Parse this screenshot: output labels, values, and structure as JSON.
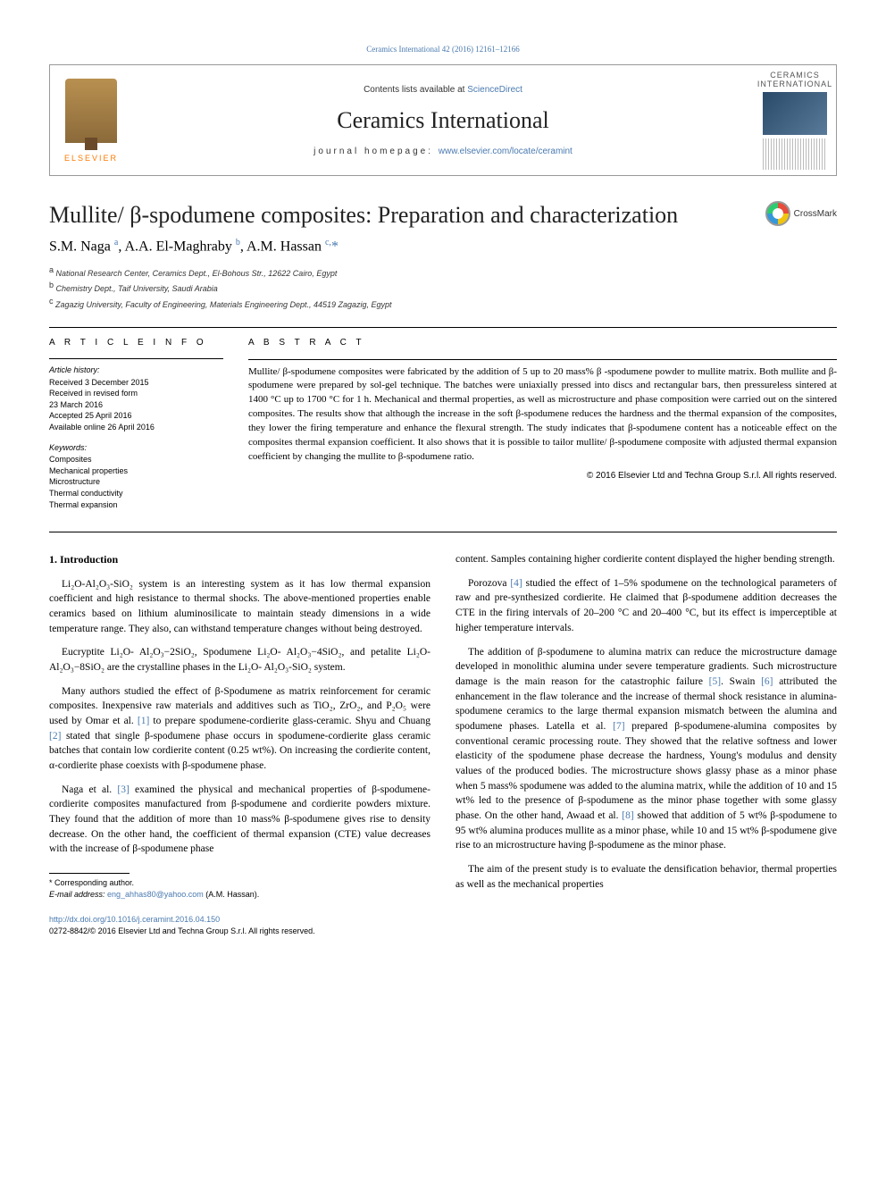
{
  "top_link": "Ceramics International 42 (2016) 12161–12166",
  "header": {
    "contents_prefix": "Contents lists available at ",
    "contents_link": "ScienceDirect",
    "journal": "Ceramics International",
    "homepage_prefix": "journal homepage: ",
    "homepage_link": "www.elsevier.com/locate/ceramint",
    "publisher": "ELSEVIER",
    "cover_title": "CERAMICS",
    "cover_sub": "INTERNATIONAL"
  },
  "article": {
    "title": "Mullite/ β-spodumene composites: Preparation and characterization",
    "crossmark": "CrossMark",
    "authors_html": "S.M. Naga <sup>a</sup>, A.A. El-Maghraby <sup>b</sup>, A.M. Hassan <sup>c,</sup><span class='star'>*</span>",
    "affiliations": [
      {
        "sup": "a",
        "text": "National Research Center, Ceramics Dept., El-Bohous Str., 12622 Cairo, Egypt"
      },
      {
        "sup": "b",
        "text": "Chemistry Dept., Taif University, Saudi Arabia"
      },
      {
        "sup": "c",
        "text": "Zagazig University, Faculty of Engineering, Materials Engineering Dept., 44519 Zagazig, Egypt"
      }
    ]
  },
  "info": {
    "heading": "A R T I C L E  I N F O",
    "history_label": "Article history:",
    "history": [
      "Received 3 December 2015",
      "Received in revised form",
      "23 March 2016",
      "Accepted 25 April 2016",
      "Available online 26 April 2016"
    ],
    "keywords_label": "Keywords:",
    "keywords": [
      "Composites",
      "Mechanical properties",
      "Microstructure",
      "Thermal conductivity",
      "Thermal expansion"
    ]
  },
  "abstract": {
    "heading": "A B S T R A C T",
    "text": "Mullite/ β-spodumene composites were fabricated by the addition of 5 up to 20 mass% β -spodumene powder to mullite matrix. Both mullite and β-spodumene were prepared by sol-gel technique. The batches were uniaxially pressed into discs and rectangular bars, then pressureless sintered at 1400 °C up to 1700 °C for 1 h. Mechanical and thermal properties, as well as microstructure and phase composition were carried out on the sintered composites. The results show that although the increase in the soft β-spodumene reduces the hardness and the thermal expansion of the composites, they lower the firing temperature and enhance the flexural strength. The study indicates that β-spodumene content has a noticeable effect on the composites thermal expansion coefficient. It also shows that it is possible to tailor mullite/ β-spodumene composite with adjusted thermal expansion coefficient by changing the mullite to β-spodumene ratio.",
    "copyright": "© 2016 Elsevier Ltd and Techna Group S.r.l. All rights reserved."
  },
  "body": {
    "section1_heading": "1.  Introduction",
    "left_paras": [
      "Li₂O-Al₂O₃-SiO₂ system is an interesting system as it has low thermal expansion coefficient and high resistance to thermal shocks. The above-mentioned properties enable ceramics based on lithium aluminosilicate to maintain steady dimensions in a wide temperature range. They also, can withstand temperature changes without being destroyed.",
      "Eucryptite Li₂O- Al₂O₃−2SiO₂, Spodumene Li₂O- Al₂O₃−4SiO₂, and petalite Li₂O- Al₂O₃−8SiO₂ are the crystalline phases in the Li₂O- Al₂O₃-SiO₂ system.",
      "Many authors studied the effect of β-Spodumene as matrix reinforcement for ceramic composites. Inexpensive raw materials and additives such as TiO₂, ZrO₂, and P₂O₅ were used by Omar et al. <span class='ref-link'>[1]</span> to prepare spodumene-cordierite glass-ceramic. Shyu and Chuang <span class='ref-link'>[2]</span> stated that single β-spodumene phase occurs in spodumene-cordierite glass ceramic batches that contain low cordierite content (0.25 wt%). On increasing the cordierite content, α-cordierite phase coexists with β-spodumene phase.",
      "Naga et al. <span class='ref-link'>[3]</span> examined the physical and mechanical properties of β-spodumene-cordierite composites manufactured from β-spodumene and cordierite powders mixture. They found that the addition of more than 10 mass% β-spodumene gives rise to density decrease. On the other hand, the coefficient of thermal expansion (CTE) value decreases with the increase of β-spodumene phase"
    ],
    "right_paras": [
      "content. Samples containing higher cordierite content displayed the higher bending strength.",
      "Porozova <span class='ref-link'>[4]</span> studied the effect of 1–5% spodumene on the technological parameters of raw and pre-synthesized cordierite. He claimed that β-spodumene addition decreases the CTE in the firing intervals of 20–200 °C and 20–400 °C, but its effect is imperceptible at higher temperature intervals.",
      "The addition of β-spodumene to alumina matrix can reduce the microstructure damage developed in monolithic alumina under severe temperature gradients. Such microstructure damage is the main reason for the catastrophic failure <span class='ref-link'>[5]</span>. Swain <span class='ref-link'>[6]</span> attributed the enhancement in the flaw tolerance and the increase of thermal shock resistance in alumina- spodumene ceramics to the large thermal expansion mismatch between the alumina and spodumene phases. Latella et al. <span class='ref-link'>[7]</span> prepared β-spodumene-alumina composites by conventional ceramic processing route. They showed that the relative softness and lower elasticity of the spodumene phase decrease the hardness, Young's modulus and density values of the produced bodies. The microstructure shows glassy phase as a minor phase when 5 mass% spodumene was added to the alumina matrix, while the addition of 10 and 15 wt% led to the presence of β-spodumene as the minor phase together with some glassy phase. On the other hand, Awaad et al. <span class='ref-link'>[8]</span> showed that addition of 5 wt% β-spodumene to 95 wt% alumina produces mullite as a minor phase, while 10 and 15 wt% β-spodumene give rise to an microstructure having β-spodumene as the minor phase.",
      "The aim of the present study is to evaluate the densification behavior, thermal properties as well as the mechanical properties"
    ]
  },
  "footnotes": {
    "corresponding": "* Corresponding author.",
    "email_label": "E-mail address: ",
    "email": "eng_ahhas80@yahoo.com",
    "email_suffix": " (A.M. Hassan)."
  },
  "doi": {
    "link": "http://dx.doi.org/10.1016/j.ceramint.2016.04.150",
    "issn_line": "0272-8842/© 2016 Elsevier Ltd and Techna Group S.r.l. All rights reserved."
  }
}
